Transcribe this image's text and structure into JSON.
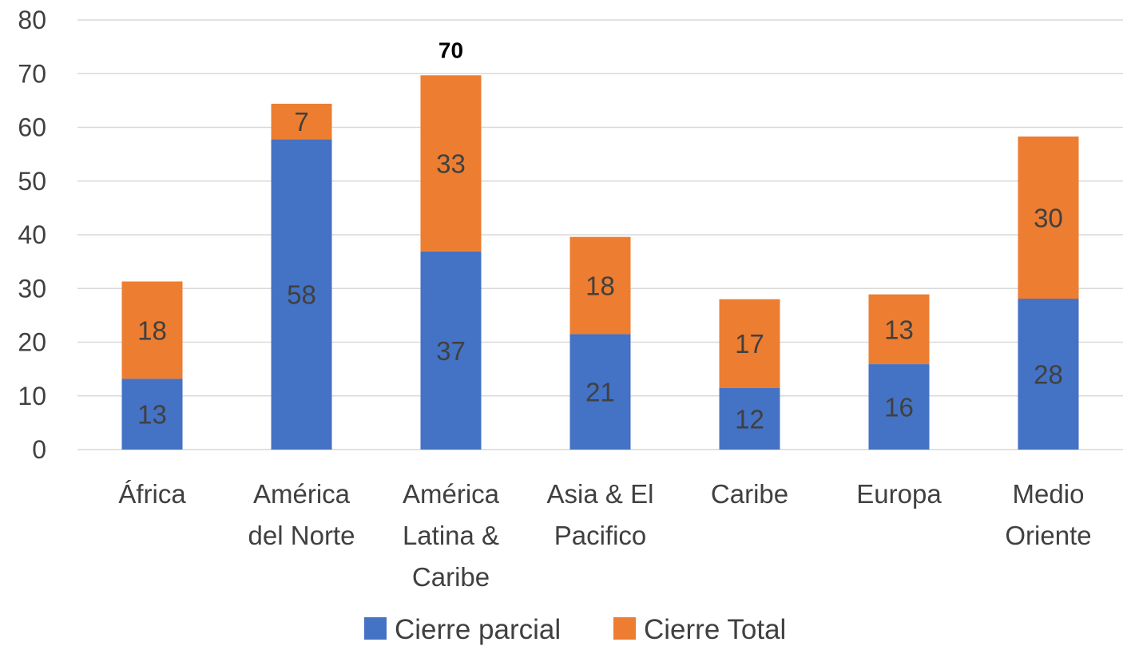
{
  "chart_data": {
    "type": "bar",
    "stacked": true,
    "title": "",
    "xlabel": "",
    "ylabel": "",
    "ylim": [
      0,
      80
    ],
    "y_ticks": [
      "0",
      "10",
      "20",
      "30",
      "40",
      "50",
      "60",
      "70",
      "80"
    ],
    "grid": true,
    "legend_position": "bottom",
    "categories": [
      [
        "África"
      ],
      [
        "América",
        "del Norte"
      ],
      [
        "América",
        "Latina &",
        "Caribe"
      ],
      [
        "Asia & El",
        "Pacifico"
      ],
      [
        "Caribe"
      ],
      [
        "Europa"
      ],
      [
        "Medio",
        "Oriente"
      ]
    ],
    "series": [
      {
        "name": "Cierre parcial",
        "color": "#4472c4",
        "values": [
          13.2,
          57.8,
          36.9,
          21.5,
          11.5,
          15.9,
          28.1
        ],
        "labels": [
          "13",
          "58",
          "37",
          "21",
          "12",
          "16",
          "28"
        ]
      },
      {
        "name": "Cierre Total",
        "color": "#ed7d31",
        "values": [
          18.1,
          6.6,
          32.8,
          18.1,
          16.5,
          13.0,
          30.2
        ],
        "labels": [
          "18",
          "7",
          "33",
          "18",
          "17",
          "13",
          "30"
        ]
      }
    ],
    "annotations": [
      {
        "category_index": 2,
        "text": "70"
      }
    ]
  }
}
